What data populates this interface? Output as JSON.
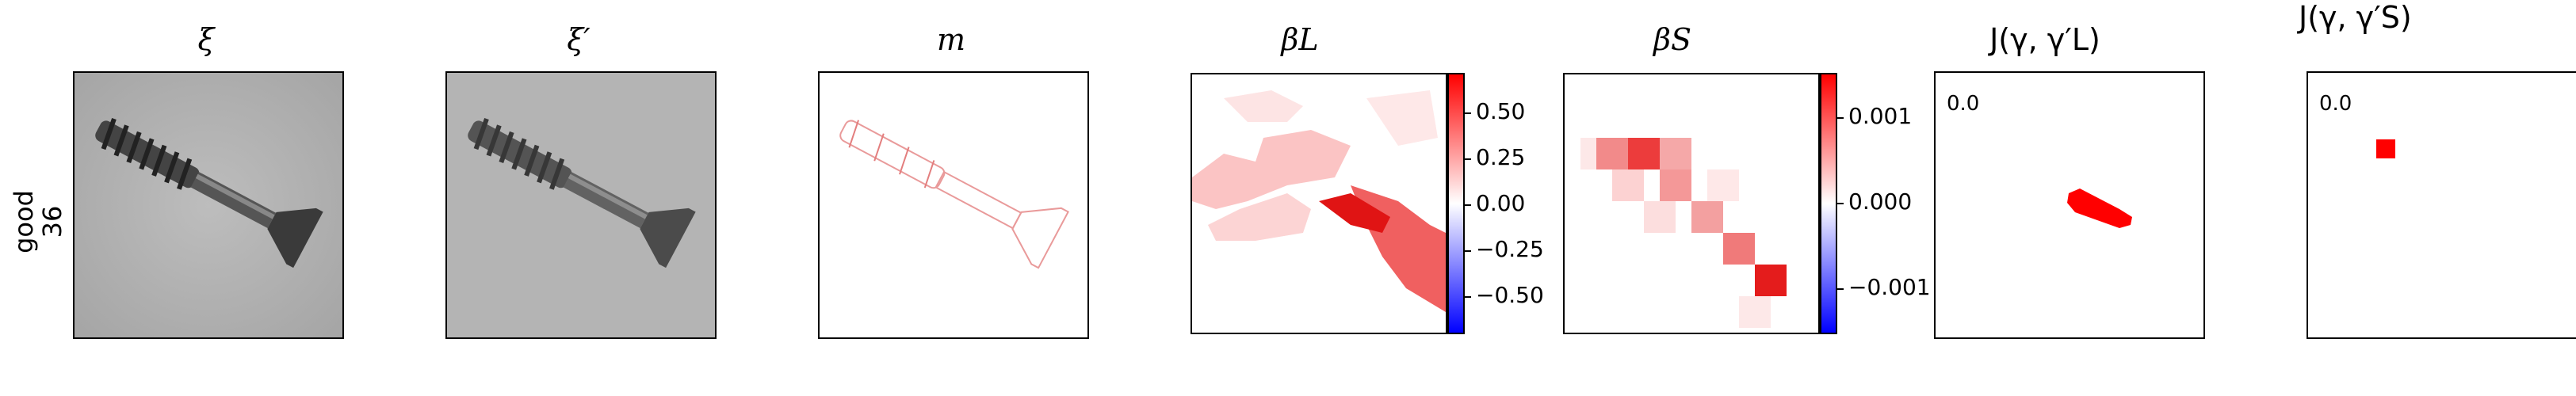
{
  "row": {
    "label_line1": "good",
    "label_line2": "36"
  },
  "panels": [
    {
      "title": "ξ"
    },
    {
      "title": "ξ′"
    },
    {
      "title": "m"
    },
    {
      "title": "βL"
    },
    {
      "title": "βS"
    },
    {
      "title": "J(γ, γ′L)"
    },
    {
      "title": "J(γ, γ′S)"
    }
  ],
  "colorbar_L": {
    "ticks": [
      "0.50",
      "0.25",
      "0.00",
      "−0.25",
      "−0.50"
    ]
  },
  "colorbar_S": {
    "ticks": [
      "0.001",
      "0.000",
      "−0.001"
    ]
  },
  "scores": {
    "L": "0.0",
    "S": "0.0"
  },
  "colors": {
    "positive": "#ff0000",
    "negative": "#0000ff",
    "neutral": "#ffffff"
  }
}
